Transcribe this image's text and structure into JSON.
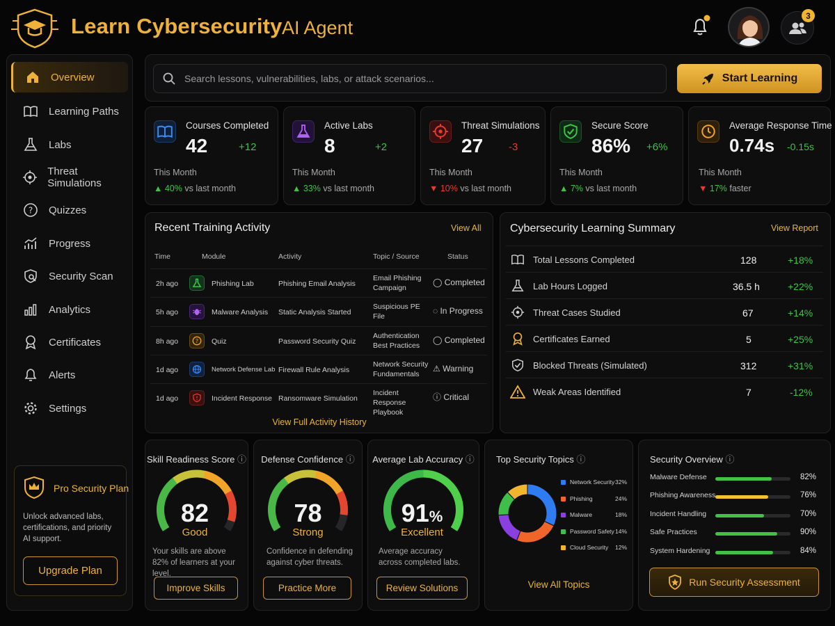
{
  "header": {
    "title": "Learn Cybersecurity",
    "subtitle": "AI Agent",
    "notification_badge": "",
    "team_badge": "3"
  },
  "sidebar": {
    "items": [
      {
        "label": "Overview",
        "icon": "home-icon",
        "active": true
      },
      {
        "label": "Learning Paths",
        "icon": "book-icon"
      },
      {
        "label": "Labs",
        "icon": "flask-icon"
      },
      {
        "label": "Threat Simulations",
        "icon": "target-icon"
      },
      {
        "label": "Quizzes",
        "icon": "question-icon"
      },
      {
        "label": "Progress",
        "icon": "chart-line-icon"
      },
      {
        "label": "Security Scan",
        "icon": "shield-search-icon"
      },
      {
        "label": "Analytics",
        "icon": "bar-chart-icon"
      },
      {
        "label": "Certificates",
        "icon": "award-icon"
      },
      {
        "label": "Alerts",
        "icon": "bell-icon"
      },
      {
        "label": "Settings",
        "icon": "gear-icon"
      }
    ],
    "pro": {
      "title": "Pro Security Plan",
      "description": "Unlock advanced labs, certifications, and priority AI support.",
      "button": "Upgrade Plan"
    }
  },
  "search": {
    "placeholder": "Search lessons, vulnerabilities, labs, or attack scenarios...",
    "button": "Start Learning"
  },
  "stats": [
    {
      "label": "Courses Completed",
      "value": "42",
      "delta": "+12",
      "period": "This Month",
      "trend_dir": "up",
      "trend_value": "40%",
      "trend_text": "vs last month",
      "color": "#3a8cf0"
    },
    {
      "label": "Active Labs",
      "value": "8",
      "delta": "+2",
      "period": "This Month",
      "trend_dir": "up",
      "trend_value": "33%",
      "trend_text": "vs last month",
      "color": "#a24df0"
    },
    {
      "label": "Threat Simulations",
      "value": "27",
      "delta": "-3",
      "period": "This Month",
      "trend_dir": "down",
      "trend_value": "10%",
      "trend_text": "vs last month",
      "color": "#e53b32"
    },
    {
      "label": "Secure Score",
      "value": "86%",
      "delta": "+6%",
      "period": "This Month",
      "trend_dir": "up",
      "trend_value": "7%",
      "trend_text": "vs last month",
      "color": "#3fc24a"
    },
    {
      "label": "Average Response Time",
      "value": "0.74s",
      "delta": "-0.15s",
      "period": "This Month",
      "trend_dir": "down",
      "trend_value": "17%",
      "trend_text": "faster",
      "color": "#f2a52a"
    }
  ],
  "activity": {
    "title": "Recent Training Activity",
    "view_all": "View All",
    "columns": [
      "Time",
      "Module",
      "Activity",
      "Topic / Source",
      "Status"
    ],
    "rows": [
      {
        "time": "2h ago",
        "module": "Phishing Lab",
        "activity": "Phishing Email Analysis",
        "topic": "Email Phishing Campaign",
        "status": "Completed",
        "status_type": "completed"
      },
      {
        "time": "5h ago",
        "module": "Malware Analysis",
        "activity": "Static Analysis Started",
        "topic": "Suspicious PE File",
        "status": "In Progress",
        "status_type": "progress"
      },
      {
        "time": "8h ago",
        "module": "Quiz",
        "activity": "Password Security Quiz",
        "topic": "Authentication Best Practices",
        "status": "Completed",
        "status_type": "completed"
      },
      {
        "time": "1d ago",
        "module": "Network Defense Lab",
        "activity": "Firewall Rule Analysis",
        "topic": "Network Security Fundamentals",
        "status": "Warning",
        "status_type": "warning"
      },
      {
        "time": "1d ago",
        "module": "Incident Response",
        "activity": "Ransomware Simulation",
        "topic": "Incident Response Playbook",
        "status": "Critical",
        "status_type": "critical"
      }
    ],
    "footer_link": "View Full Activity History"
  },
  "summary": {
    "title": "Cybersecurity Learning Summary",
    "link": "View Report",
    "rows": [
      {
        "label": "Total Lessons Completed",
        "value": "128",
        "delta": "+18%"
      },
      {
        "label": "Lab Hours Logged",
        "value": "36.5 h",
        "delta": "+22%"
      },
      {
        "label": "Threat Cases Studied",
        "value": "67",
        "delta": "+14%"
      },
      {
        "label": "Certificates Earned",
        "value": "5",
        "delta": "+25%"
      },
      {
        "label": "Blocked Threats (Simulated)",
        "value": "312",
        "delta": "+31%"
      },
      {
        "label": "Weak Areas Identified",
        "value": "7",
        "delta": "-12%"
      }
    ]
  },
  "gauges": [
    {
      "title": "Skill Readiness Score",
      "value": 82,
      "display": "82",
      "rating": "Good",
      "description": "Your skills are above 82% of learners at your level.",
      "button": "Improve Skills"
    },
    {
      "title": "Defense Confidence",
      "value": 78,
      "display": "78",
      "rating": "Strong",
      "description": "Confidence in defending against cyber threats.",
      "button": "Practice More"
    },
    {
      "title": "Average Lab Accuracy",
      "value": 91,
      "display": "91",
      "unit": "%",
      "rating": "Excellent",
      "description": "Average accuracy across completed labs.",
      "button": "Review Solutions"
    }
  ],
  "topics": {
    "title": "Top Security Topics",
    "link": "View All Topics",
    "slices": [
      {
        "name": "Network Security",
        "value": 32,
        "label": "32%",
        "color": "#2f7bf0"
      },
      {
        "name": "Phishing",
        "value": 24,
        "label": "24%",
        "color": "#f0662a"
      },
      {
        "name": "Malware",
        "value": 18,
        "label": "18%",
        "color": "#8a3fe0"
      },
      {
        "name": "Password Safety",
        "value": 14,
        "label": "14%",
        "color": "#3fbf4a"
      },
      {
        "name": "Cloud Security",
        "value": 12,
        "label": "12%",
        "color": "#f2b530"
      }
    ]
  },
  "overview": {
    "title": "Security Overview",
    "items": [
      {
        "label": "Malware Defense",
        "value": 82,
        "label_value": "82%",
        "color": "#43c046"
      },
      {
        "label": "Phishing Awareness",
        "value": 76,
        "label_value": "76%",
        "color": "#f2c230"
      },
      {
        "label": "Incident Handling",
        "value": 70,
        "label_value": "70%",
        "color": "#43c046"
      },
      {
        "label": "Safe Practices",
        "value": 90,
        "label_value": "90%",
        "color": "#43c046"
      },
      {
        "label": "System Hardening",
        "value": 84,
        "label_value": "84%",
        "color": "#43c046"
      }
    ],
    "button": "Run Security Assessment"
  }
}
